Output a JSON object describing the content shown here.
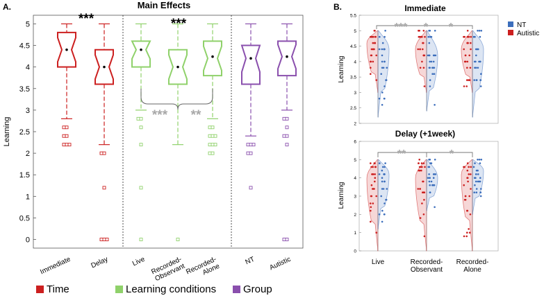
{
  "panel_a": {
    "letter": "A.",
    "title": "Main Effects",
    "ylabel": "Learning",
    "yticks": [
      "0",
      "0.5",
      "1",
      "1.5",
      "2",
      "2.5",
      "3",
      "3.5",
      "4",
      "4.5",
      "5"
    ],
    "significance": {
      "time": "***",
      "conditions_top": "***",
      "conditions_left": "***",
      "conditions_right": "**"
    },
    "legend": [
      {
        "label": "Time",
        "color": "#cc1f1f"
      },
      {
        "label": "Learning conditions",
        "color": "#8fd16a"
      },
      {
        "label": "Group",
        "color": "#8a4fad"
      }
    ]
  },
  "panel_b": {
    "letter": "B.",
    "legend": [
      {
        "label": "NT",
        "color": "#3c6ebc"
      },
      {
        "label": "Autistic",
        "color": "#cc1f1f"
      }
    ],
    "xticks": [
      "Live",
      "Recorded-Observant",
      "Recorded-Alone"
    ],
    "xtick_lines": [
      [
        "Live"
      ],
      [
        "Recorded-",
        "Observant"
      ],
      [
        "Recorded-",
        "Alone"
      ]
    ],
    "ylabel": "Learning",
    "immediate": {
      "title": "Immediate",
      "yticks": [
        "2",
        "2.5",
        "3",
        "3.5",
        "4",
        "4.5",
        "5",
        "5.5"
      ],
      "sig": [
        "***",
        "*",
        "*"
      ]
    },
    "delay": {
      "title": "Delay (+1week)",
      "yticks": [
        "0",
        "1",
        "2",
        "3",
        "4",
        "5",
        "6"
      ],
      "sig": [
        "**",
        "*"
      ]
    }
  },
  "chart_data": [
    {
      "type": "box",
      "title": "Main Effects",
      "ylabel": "Learning",
      "ylim": [
        -0.2,
        5.2
      ],
      "categories": [
        "Immediate",
        "Delay",
        "Live",
        "Recorded-Observant",
        "Recorded-Alone",
        "NT",
        "Autistic"
      ],
      "tick_lines": [
        [
          "Immediate"
        ],
        [
          "Delay"
        ],
        [
          "Live"
        ],
        [
          "Recorded-",
          "Observant"
        ],
        [
          "Recorded-",
          "Alone"
        ],
        [
          "NT"
        ],
        [
          "Autistic"
        ]
      ],
      "boxes": [
        {
          "label": "Immediate",
          "group": "Time",
          "color": "#cc1f1f",
          "whisker_low": 2.8,
          "q1": 4.0,
          "median": 4.4,
          "q3": 4.8,
          "whisker_high": 5.0,
          "mean": 4.4,
          "outliers": [
            2.6,
            2.6,
            2.4,
            2.4,
            2.2,
            2.2,
            2.2
          ]
        },
        {
          "label": "Delay",
          "group": "Time",
          "color": "#cc1f1f",
          "whisker_low": 2.2,
          "q1": 3.6,
          "median": 4.0,
          "q3": 4.4,
          "whisker_high": 5.0,
          "mean": 4.0,
          "outliers": [
            2.0,
            2.0,
            1.2,
            0,
            0,
            0
          ]
        },
        {
          "label": "Live",
          "group": "Learning conditions",
          "color": "#8fd16a",
          "whisker_low": 3.0,
          "q1": 4.0,
          "median": 4.4,
          "q3": 4.6,
          "whisker_high": 5.0,
          "mean": 4.4,
          "outliers": [
            2.8,
            2.8,
            2.6,
            2.2,
            1.2,
            0
          ]
        },
        {
          "label": "Recorded-Observant",
          "group": "Learning conditions",
          "color": "#8fd16a",
          "whisker_low": 2.2,
          "q1": 3.6,
          "median": 4.0,
          "q3": 4.4,
          "whisker_high": 5.0,
          "mean": 4.0,
          "outliers": [
            0
          ]
        },
        {
          "label": "Recorded-Alone",
          "group": "Learning conditions",
          "color": "#8fd16a",
          "whisker_low": 2.8,
          "q1": 3.8,
          "median": 4.2,
          "q3": 4.6,
          "whisker_high": 5.0,
          "mean": 4.24,
          "outliers": [
            2.6,
            2.6,
            2.4,
            2.4,
            2.4,
            2.2,
            2.2,
            2.2,
            2.0,
            2.0
          ]
        },
        {
          "label": "NT",
          "group": "Group",
          "color": "#8a4fad",
          "whisker_low": 2.4,
          "q1": 3.6,
          "median": 4.2,
          "q3": 4.5,
          "whisker_high": 5.0,
          "mean": 4.2,
          "outliers": [
            2.2,
            2.2,
            2.2,
            2.0,
            2.0,
            1.2
          ]
        },
        {
          "label": "Autistic",
          "group": "Group",
          "color": "#8a4fad",
          "whisker_low": 3.0,
          "q1": 3.8,
          "median": 4.24,
          "q3": 4.6,
          "whisker_high": 5.0,
          "mean": 4.24,
          "outliers": [
            2.8,
            2.8,
            2.6,
            2.4,
            2.4,
            2.2,
            0,
            0
          ]
        }
      ]
    },
    {
      "type": "violin",
      "title": "Immediate",
      "ylabel": "Learning",
      "ylim": [
        2,
        5.5
      ],
      "categories": [
        "Live",
        "Recorded-Observant",
        "Recorded-Alone"
      ],
      "series": [
        {
          "name": "Autistic",
          "color": "#cc1f1f",
          "side": "left",
          "min": [
            3.0,
            3.0,
            3.0
          ],
          "max": [
            5.0,
            5.0,
            5.0
          ],
          "peak": [
            4.6,
            4.4,
            4.4
          ]
        },
        {
          "name": "NT",
          "color": "#3c6ebc",
          "side": "right",
          "min": [
            2.2,
            2.4,
            2.2
          ],
          "max": [
            5.0,
            5.0,
            5.0
          ],
          "peak": [
            4.4,
            4.2,
            4.4
          ]
        }
      ]
    },
    {
      "type": "violin",
      "title": "Delay (+1week)",
      "ylabel": "Learning",
      "ylim": [
        0,
        6
      ],
      "categories": [
        "Live",
        "Recorded-Observant",
        "Recorded-Alone"
      ],
      "series": [
        {
          "name": "Autistic",
          "color": "#cc1f1f",
          "side": "left",
          "min": [
            0,
            0,
            0
          ],
          "max": [
            5.0,
            5.0,
            5.0
          ],
          "peak": [
            4.0,
            4.0,
            4.2
          ]
        },
        {
          "name": "NT",
          "color": "#3c6ebc",
          "side": "right",
          "min": [
            1.2,
            2.2,
            2.0
          ],
          "max": [
            5.0,
            5.0,
            5.0
          ],
          "peak": [
            4.2,
            4.0,
            4.4
          ]
        }
      ]
    }
  ]
}
